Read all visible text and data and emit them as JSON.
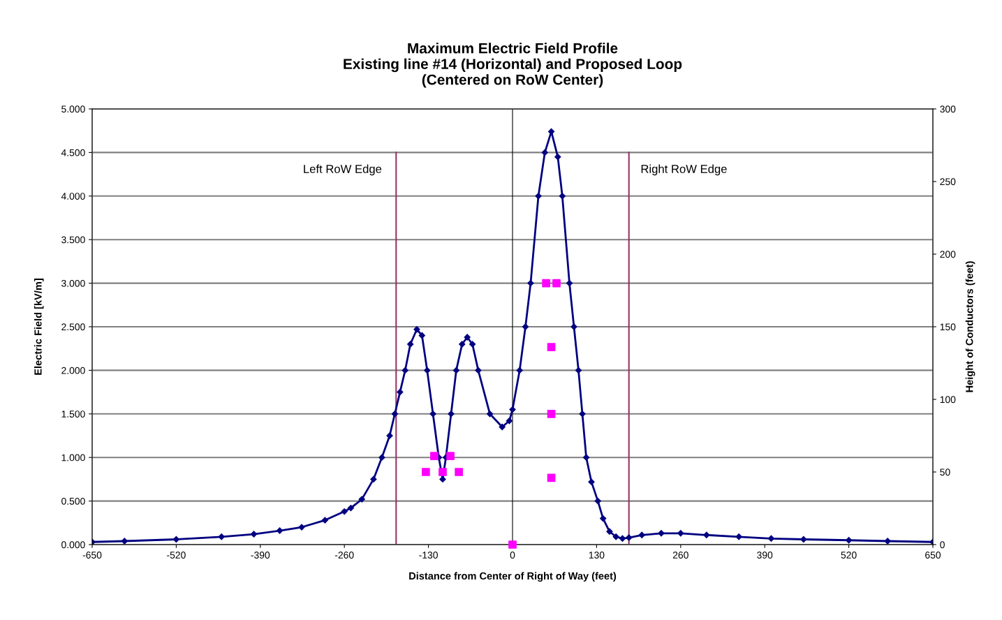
{
  "chart_data": {
    "type": "line",
    "title": "Maximum Electric Field Profile\nExisting line #14 (Horizontal) and Proposed Loop\n(Centered on RoW Center)",
    "xlabel": "Distance from Center of Right of Way (feet)",
    "ylabel": "Electric Field [kV/m]",
    "y2label": "Height of Conductors (feet)",
    "series": [
      {
        "color": "#000080",
        "marker": "diamond",
        "line_style": "solid",
        "x": [
          -650,
          -600,
          -520,
          -450,
          -400,
          -360,
          -326,
          -290,
          -260,
          -250,
          -233,
          -215,
          -202,
          -190,
          -182,
          -174,
          -166,
          -158,
          -148,
          -140,
          -132,
          -123,
          -114,
          -108,
          -103,
          -95,
          -87,
          -78,
          -70,
          -62,
          -53,
          -35,
          -16,
          -5,
          0,
          11,
          20,
          28,
          40,
          50,
          60,
          70,
          77,
          88,
          95,
          102,
          108,
          114,
          122,
          132,
          140,
          150,
          160,
          170,
          180,
          200,
          230,
          260,
          300,
          350,
          400,
          450,
          520,
          580,
          650
        ],
        "values": [
          0.03,
          0.04,
          0.06,
          0.09,
          0.12,
          0.16,
          0.2,
          0.28,
          0.38,
          0.42,
          0.52,
          0.75,
          1.0,
          1.25,
          1.5,
          1.75,
          2.0,
          2.3,
          2.47,
          2.4,
          2.0,
          1.5,
          1.0,
          0.75,
          1.0,
          1.5,
          2.0,
          2.3,
          2.38,
          2.3,
          2.0,
          1.5,
          1.35,
          1.42,
          1.55,
          2.0,
          2.5,
          3.0,
          4.0,
          4.5,
          4.74,
          4.45,
          4.0,
          3.0,
          2.5,
          2.0,
          1.5,
          1.0,
          0.72,
          0.5,
          0.3,
          0.15,
          0.09,
          0.07,
          0.08,
          0.11,
          0.13,
          0.13,
          0.11,
          0.09,
          0.07,
          0.06,
          0.05,
          0.04,
          0.03
        ]
      },
      {
        "type": "scatter",
        "axis": "y2",
        "color": "#ff00ff",
        "marker": "square",
        "x": [
          -134,
          -121,
          -108,
          -96,
          -83,
          0,
          52,
          68,
          60,
          60,
          60
        ],
        "values": [
          50,
          61,
          50,
          61,
          50,
          0,
          180,
          180,
          136,
          90,
          46
        ]
      }
    ],
    "xlim": [
      -650,
      650
    ],
    "xticks": [
      -650,
      -520,
      -390,
      -260,
      -130,
      0,
      130,
      260,
      390,
      520,
      650
    ],
    "ylim": [
      0,
      5
    ],
    "yticks": [
      {
        "value": 0,
        "label": "0.000"
      },
      {
        "value": 0.5,
        "label": "0.500"
      },
      {
        "value": 1,
        "label": "1.000"
      },
      {
        "value": 1.5,
        "label": "1.500"
      },
      {
        "value": 2,
        "label": "2.000"
      },
      {
        "value": 2.5,
        "label": "2.500"
      },
      {
        "value": 3,
        "label": "3.000"
      },
      {
        "value": 3.5,
        "label": "3.500"
      },
      {
        "value": 4,
        "label": "4.000"
      },
      {
        "value": 4.5,
        "label": "4.500"
      },
      {
        "value": 5,
        "label": "5.000"
      }
    ],
    "y2lim": [
      0,
      300
    ],
    "y2ticks": [
      0,
      50,
      100,
      150,
      200,
      250,
      300
    ],
    "ref_lines": [
      {
        "axis": "x",
        "value": -180,
        "label": "Left RoW Edge",
        "color": "#993366"
      },
      {
        "axis": "x",
        "value": 180,
        "label": "Right RoW Edge",
        "color": "#993366"
      },
      {
        "axis": "x",
        "value": 0,
        "color": "#000000"
      }
    ],
    "grid": "y",
    "legend": false
  }
}
